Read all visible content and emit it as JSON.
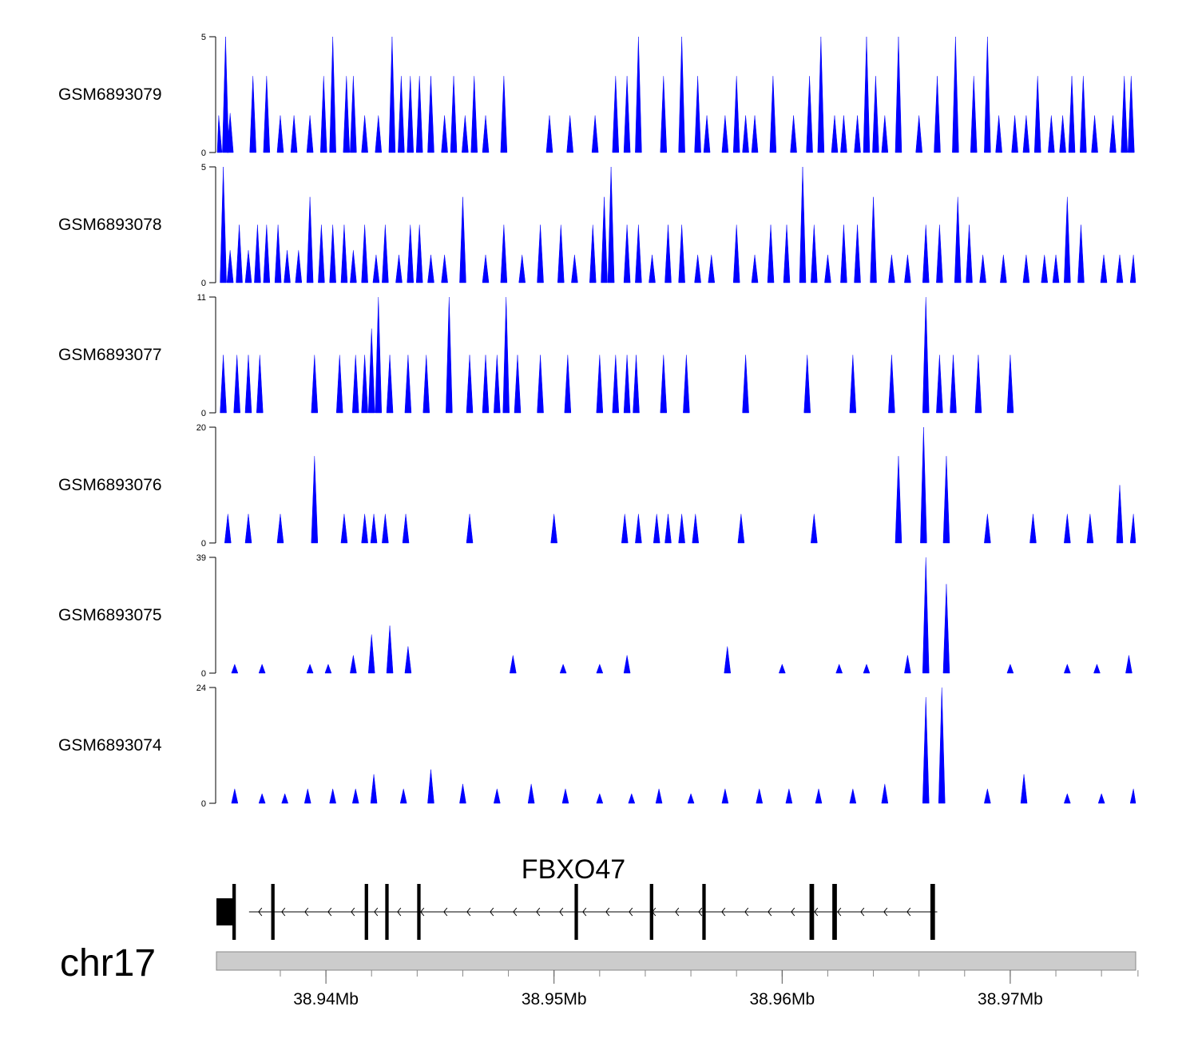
{
  "chart_data": {
    "type": "area",
    "chromosome": "chr17",
    "xlim": [
      38.9352,
      38.9755
    ],
    "x_axis": {
      "unit": "Mb",
      "labels": [
        {
          "value": 38.94,
          "text": "38.94Mb"
        },
        {
          "value": 38.95,
          "text": "38.95Mb"
        },
        {
          "value": 38.96,
          "text": "38.96Mb"
        },
        {
          "value": 38.97,
          "text": "38.97Mb"
        }
      ],
      "minor_ticks": [
        38.938,
        38.94,
        38.942,
        38.944,
        38.946,
        38.948,
        38.95,
        38.952,
        38.954,
        38.956,
        38.958,
        38.96,
        38.962,
        38.964,
        38.966,
        38.968,
        38.97,
        38.972,
        38.974,
        38.9756
      ]
    },
    "tracks": [
      {
        "name": "GSM6893079",
        "ylim": [
          0,
          5
        ],
        "ymax_label": "5",
        "ymin_label": "0",
        "color": "#0000ff",
        "peaks": [
          [
            38.9353,
            1.6
          ],
          [
            38.9356,
            5
          ],
          [
            38.9358,
            1.7
          ],
          [
            38.9368,
            3.3
          ],
          [
            38.9374,
            3.3
          ],
          [
            38.938,
            1.6
          ],
          [
            38.9386,
            1.6
          ],
          [
            38.9393,
            1.6
          ],
          [
            38.9399,
            3.3
          ],
          [
            38.9403,
            5
          ],
          [
            38.9409,
            3.3
          ],
          [
            38.9412,
            3.3
          ],
          [
            38.9417,
            1.6
          ],
          [
            38.9423,
            1.6
          ],
          [
            38.9429,
            5
          ],
          [
            38.9433,
            3.3
          ],
          [
            38.9437,
            3.3
          ],
          [
            38.9441,
            3.3
          ],
          [
            38.9446,
            3.3
          ],
          [
            38.9452,
            1.6
          ],
          [
            38.9456,
            3.3
          ],
          [
            38.9461,
            1.6
          ],
          [
            38.9465,
            3.3
          ],
          [
            38.947,
            1.6
          ],
          [
            38.9478,
            3.3
          ],
          [
            38.9498,
            1.6
          ],
          [
            38.9507,
            1.6
          ],
          [
            38.9518,
            1.6
          ],
          [
            38.9527,
            3.3
          ],
          [
            38.9532,
            3.3
          ],
          [
            38.9537,
            5
          ],
          [
            38.9548,
            3.3
          ],
          [
            38.9556,
            5
          ],
          [
            38.9563,
            3.3
          ],
          [
            38.9567,
            1.6
          ],
          [
            38.9575,
            1.6
          ],
          [
            38.958,
            3.3
          ],
          [
            38.9584,
            1.6
          ],
          [
            38.9588,
            1.6
          ],
          [
            38.9596,
            3.3
          ],
          [
            38.9605,
            1.6
          ],
          [
            38.9612,
            3.3
          ],
          [
            38.9617,
            5
          ],
          [
            38.9623,
            1.6
          ],
          [
            38.9627,
            1.6
          ],
          [
            38.9633,
            1.6
          ],
          [
            38.9637,
            5
          ],
          [
            38.9641,
            3.3
          ],
          [
            38.9645,
            1.6
          ],
          [
            38.9651,
            5
          ],
          [
            38.966,
            1.6
          ],
          [
            38.9668,
            3.3
          ],
          [
            38.9676,
            5
          ],
          [
            38.9684,
            3.3
          ],
          [
            38.969,
            5
          ],
          [
            38.9695,
            1.6
          ],
          [
            38.9702,
            1.6
          ],
          [
            38.9707,
            1.6
          ],
          [
            38.9712,
            3.3
          ],
          [
            38.9718,
            1.6
          ],
          [
            38.9723,
            1.6
          ],
          [
            38.9727,
            3.3
          ],
          [
            38.9732,
            3.3
          ],
          [
            38.9737,
            1.6
          ],
          [
            38.9745,
            1.6
          ],
          [
            38.975,
            3.3
          ],
          [
            38.9753,
            3.3
          ]
        ]
      },
      {
        "name": "GSM6893078",
        "ylim": [
          0,
          5
        ],
        "ymax_label": "5",
        "ymin_label": "0",
        "color": "#0000ff",
        "peaks": [
          [
            38.9355,
            5
          ],
          [
            38.9358,
            1.4
          ],
          [
            38.9362,
            2.5
          ],
          [
            38.9366,
            1.4
          ],
          [
            38.937,
            2.5
          ],
          [
            38.9374,
            2.5
          ],
          [
            38.9379,
            2.5
          ],
          [
            38.9383,
            1.4
          ],
          [
            38.9388,
            1.4
          ],
          [
            38.9393,
            3.7
          ],
          [
            38.9398,
            2.5
          ],
          [
            38.9403,
            2.5
          ],
          [
            38.9408,
            2.5
          ],
          [
            38.9412,
            1.4
          ],
          [
            38.9417,
            2.5
          ],
          [
            38.9422,
            1.2
          ],
          [
            38.9426,
            2.5
          ],
          [
            38.9432,
            1.2
          ],
          [
            38.9437,
            2.5
          ],
          [
            38.9441,
            2.5
          ],
          [
            38.9446,
            1.2
          ],
          [
            38.9452,
            1.2
          ],
          [
            38.946,
            3.7
          ],
          [
            38.947,
            1.2
          ],
          [
            38.9478,
            2.5
          ],
          [
            38.9486,
            1.2
          ],
          [
            38.9494,
            2.5
          ],
          [
            38.9503,
            2.5
          ],
          [
            38.9509,
            1.2
          ],
          [
            38.9517,
            2.5
          ],
          [
            38.9522,
            3.7
          ],
          [
            38.9525,
            5
          ],
          [
            38.9532,
            2.5
          ],
          [
            38.9537,
            2.5
          ],
          [
            38.9543,
            1.2
          ],
          [
            38.955,
            2.5
          ],
          [
            38.9556,
            2.5
          ],
          [
            38.9563,
            1.2
          ],
          [
            38.9569,
            1.2
          ],
          [
            38.958,
            2.5
          ],
          [
            38.9588,
            1.2
          ],
          [
            38.9595,
            2.5
          ],
          [
            38.9602,
            2.5
          ],
          [
            38.9609,
            5
          ],
          [
            38.9614,
            2.5
          ],
          [
            38.962,
            1.2
          ],
          [
            38.9627,
            2.5
          ],
          [
            38.9633,
            2.5
          ],
          [
            38.964,
            3.7
          ],
          [
            38.9648,
            1.2
          ],
          [
            38.9655,
            1.2
          ],
          [
            38.9663,
            2.5
          ],
          [
            38.9669,
            2.5
          ],
          [
            38.9677,
            3.7
          ],
          [
            38.9682,
            2.5
          ],
          [
            38.9688,
            1.2
          ],
          [
            38.9697,
            1.2
          ],
          [
            38.9707,
            1.2
          ],
          [
            38.9715,
            1.2
          ],
          [
            38.972,
            1.2
          ],
          [
            38.9725,
            3.7
          ],
          [
            38.9731,
            2.5
          ],
          [
            38.9741,
            1.2
          ],
          [
            38.9748,
            1.2
          ],
          [
            38.9754,
            1.2
          ]
        ]
      },
      {
        "name": "GSM6893077",
        "ylim": [
          0,
          11
        ],
        "ymax_label": "11",
        "ymin_label": "0",
        "color": "#0000ff",
        "peaks": [
          [
            38.9355,
            5.5
          ],
          [
            38.9361,
            5.5
          ],
          [
            38.9366,
            5.5
          ],
          [
            38.9371,
            5.5
          ],
          [
            38.9395,
            5.5
          ],
          [
            38.9406,
            5.5
          ],
          [
            38.9413,
            5.5
          ],
          [
            38.9417,
            5.5
          ],
          [
            38.942,
            8
          ],
          [
            38.9423,
            11
          ],
          [
            38.9428,
            5.5
          ],
          [
            38.9436,
            5.5
          ],
          [
            38.9444,
            5.5
          ],
          [
            38.9454,
            11
          ],
          [
            38.9463,
            5.5
          ],
          [
            38.947,
            5.5
          ],
          [
            38.9475,
            5.5
          ],
          [
            38.9479,
            11
          ],
          [
            38.9484,
            5.5
          ],
          [
            38.9494,
            5.5
          ],
          [
            38.9506,
            5.5
          ],
          [
            38.952,
            5.5
          ],
          [
            38.9527,
            5.5
          ],
          [
            38.9532,
            5.5
          ],
          [
            38.9536,
            5.5
          ],
          [
            38.9548,
            5.5
          ],
          [
            38.9558,
            5.5
          ],
          [
            38.9584,
            5.5
          ],
          [
            38.9611,
            5.5
          ],
          [
            38.9631,
            5.5
          ],
          [
            38.9648,
            5.5
          ],
          [
            38.9663,
            11
          ],
          [
            38.9669,
            5.5
          ],
          [
            38.9675,
            5.5
          ],
          [
            38.9686,
            5.5
          ],
          [
            38.97,
            5.5
          ]
        ]
      },
      {
        "name": "GSM6893076",
        "ylim": [
          0,
          20
        ],
        "ymax_label": "20",
        "ymin_label": "0",
        "color": "#0000ff",
        "peaks": [
          [
            38.9357,
            5
          ],
          [
            38.9366,
            5
          ],
          [
            38.938,
            5
          ],
          [
            38.9395,
            15
          ],
          [
            38.9408,
            5
          ],
          [
            38.9417,
            5
          ],
          [
            38.9421,
            5
          ],
          [
            38.9426,
            5
          ],
          [
            38.9435,
            5
          ],
          [
            38.9463,
            5
          ],
          [
            38.95,
            5
          ],
          [
            38.9531,
            5
          ],
          [
            38.9537,
            5
          ],
          [
            38.9545,
            5
          ],
          [
            38.955,
            5
          ],
          [
            38.9556,
            5
          ],
          [
            38.9562,
            5
          ],
          [
            38.9582,
            5
          ],
          [
            38.9614,
            5
          ],
          [
            38.9651,
            15
          ],
          [
            38.9662,
            20
          ],
          [
            38.9672,
            15
          ],
          [
            38.969,
            5
          ],
          [
            38.971,
            5
          ],
          [
            38.9725,
            5
          ],
          [
            38.9735,
            5
          ],
          [
            38.9748,
            10
          ],
          [
            38.9754,
            5
          ]
        ]
      },
      {
        "name": "GSM6893075",
        "ylim": [
          0,
          39
        ],
        "ymax_label": "39",
        "ymin_label": "0",
        "color": "#0000ff",
        "peaks": [
          [
            38.936,
            3
          ],
          [
            38.9372,
            3
          ],
          [
            38.9393,
            3
          ],
          [
            38.9401,
            3
          ],
          [
            38.9412,
            6
          ],
          [
            38.942,
            13
          ],
          [
            38.9428,
            16
          ],
          [
            38.9436,
            9
          ],
          [
            38.9482,
            6
          ],
          [
            38.9504,
            3
          ],
          [
            38.952,
            3
          ],
          [
            38.9532,
            6
          ],
          [
            38.9576,
            9
          ],
          [
            38.96,
            3
          ],
          [
            38.9625,
            3
          ],
          [
            38.9637,
            3
          ],
          [
            38.9655,
            6
          ],
          [
            38.9663,
            39
          ],
          [
            38.9672,
            30
          ],
          [
            38.97,
            3
          ],
          [
            38.9725,
            3
          ],
          [
            38.9738,
            3
          ],
          [
            38.9752,
            6
          ]
        ]
      },
      {
        "name": "GSM6893074",
        "ylim": [
          0,
          24
        ],
        "ymax_label": "24",
        "ymin_label": "0",
        "color": "#0000ff",
        "peaks": [
          [
            38.936,
            3
          ],
          [
            38.9372,
            2
          ],
          [
            38.9382,
            2
          ],
          [
            38.9392,
            3
          ],
          [
            38.9403,
            3
          ],
          [
            38.9413,
            3
          ],
          [
            38.9421,
            6
          ],
          [
            38.9434,
            3
          ],
          [
            38.9446,
            7
          ],
          [
            38.946,
            4
          ],
          [
            38.9475,
            3
          ],
          [
            38.949,
            4
          ],
          [
            38.9505,
            3
          ],
          [
            38.952,
            2
          ],
          [
            38.9534,
            2
          ],
          [
            38.9546,
            3
          ],
          [
            38.956,
            2
          ],
          [
            38.9575,
            3
          ],
          [
            38.959,
            3
          ],
          [
            38.9603,
            3
          ],
          [
            38.9616,
            3
          ],
          [
            38.9631,
            3
          ],
          [
            38.9645,
            4
          ],
          [
            38.9663,
            22
          ],
          [
            38.967,
            24
          ],
          [
            38.969,
            3
          ],
          [
            38.9706,
            6
          ],
          [
            38.9725,
            2
          ],
          [
            38.974,
            2
          ],
          [
            38.9754,
            3
          ]
        ]
      }
    ]
  },
  "gene_track": {
    "gene_name": "FBXO47",
    "strand": "minus",
    "tx_start": 38.9367,
    "tx_end": 38.9668,
    "exons": [
      {
        "start": 38.9352,
        "end": 38.9359,
        "thickness": "thick"
      },
      {
        "start": 38.9359,
        "end": 38.93605,
        "thickness": "thick"
      },
      {
        "start": 38.9376,
        "end": 38.93775,
        "thickness": "thick"
      },
      {
        "start": 38.9417,
        "end": 38.94185,
        "thickness": "thick"
      },
      {
        "start": 38.9426,
        "end": 38.94275,
        "thickness": "thick"
      },
      {
        "start": 38.944,
        "end": 38.94415,
        "thickness": "thick"
      },
      {
        "start": 38.9509,
        "end": 38.95105,
        "thickness": "thick"
      },
      {
        "start": 38.9542,
        "end": 38.95435,
        "thickness": "thick"
      },
      {
        "start": 38.9565,
        "end": 38.95665,
        "thickness": "thick"
      },
      {
        "start": 38.9612,
        "end": 38.9614,
        "thickness": "thick"
      },
      {
        "start": 38.9622,
        "end": 38.9624,
        "thickness": "thick"
      },
      {
        "start": 38.9665,
        "end": 38.9667,
        "thickness": "thick"
      }
    ]
  }
}
